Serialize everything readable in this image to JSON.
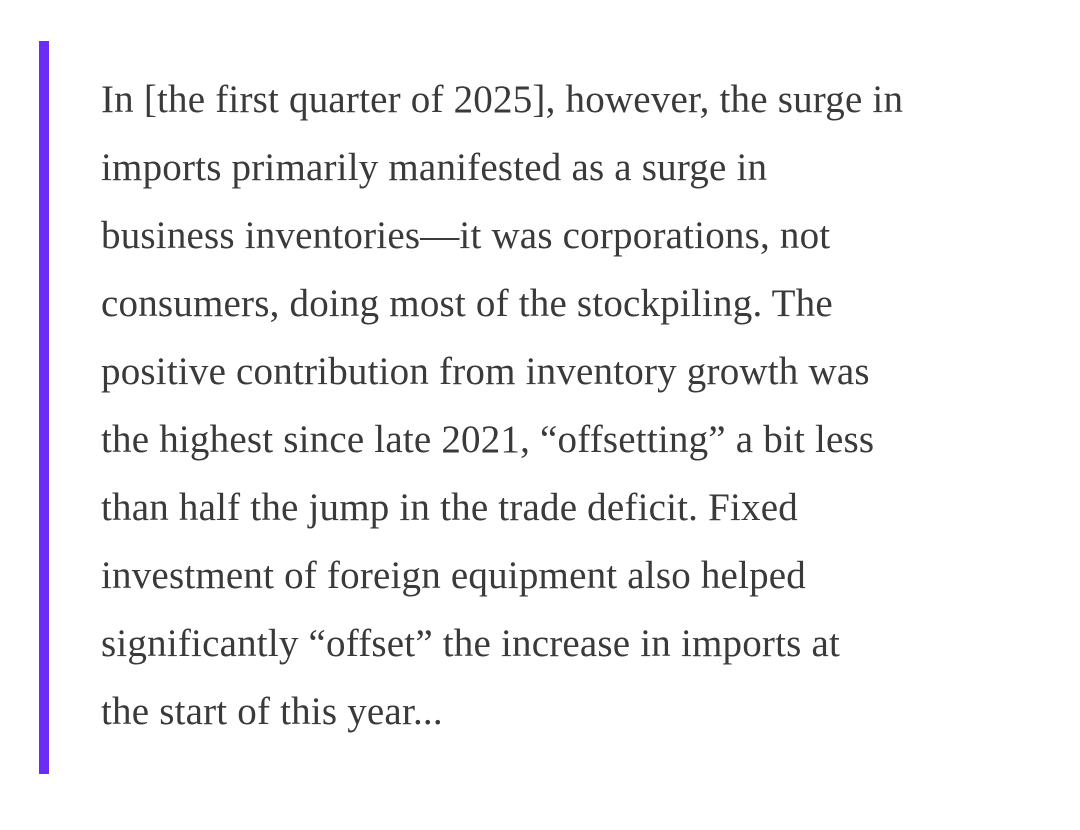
{
  "blockquote": {
    "accent_color": "#6b2cf5",
    "text_color": "#3a3a3a",
    "lines": [
      "In [the first quarter of 2025], however, the surge in",
      "imports primarily manifested as a surge in",
      "business inventories—it was corporations, not",
      "consumers, doing most of the stockpiling. The",
      "positive contribution from inventory growth was",
      "the highest since late 2021, “offsetting” a bit less",
      "than half the jump in the trade deficit. Fixed",
      "investment of foreign equipment also helped",
      "significantly “offset” the increase in imports at",
      "the start of this year..."
    ]
  }
}
